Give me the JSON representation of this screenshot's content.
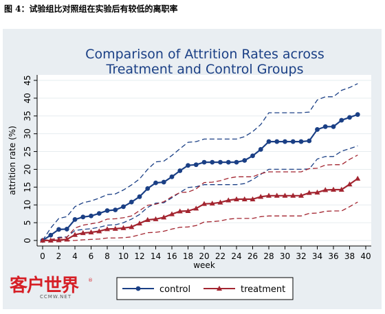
{
  "caption": "图 4：试验组比对照组在实验后有较低的离职率",
  "logo": {
    "main": "客户世界",
    "sub": "CCMW.NET",
    "reg": "®"
  },
  "colors": {
    "frame": "#e9eef2",
    "plot_bg": "#ffffff",
    "control": "#1a3f85",
    "treatment": "#a32530"
  },
  "chart_data": {
    "type": "line",
    "title": "Comparison of Attrition Rates across\nTreatment and Control Groups",
    "xlabel": "week",
    "ylabel": "attrition rate (%)",
    "xlim": [
      0,
      40
    ],
    "ylim": [
      0,
      45
    ],
    "xticks": [
      0,
      2,
      4,
      6,
      8,
      10,
      12,
      14,
      16,
      18,
      20,
      22,
      24,
      26,
      28,
      30,
      32,
      34,
      36,
      38,
      40
    ],
    "yticks": [
      0,
      5,
      10,
      15,
      20,
      25,
      30,
      35,
      40,
      45
    ],
    "grid": true,
    "legend": "bottom",
    "x": [
      0,
      1,
      2,
      3,
      4,
      5,
      6,
      7,
      8,
      9,
      10,
      11,
      12,
      13,
      14,
      15,
      16,
      17,
      18,
      19,
      20,
      21,
      22,
      23,
      24,
      25,
      26,
      27,
      28,
      29,
      30,
      31,
      32,
      33,
      34,
      35,
      36,
      37,
      38,
      39
    ],
    "series": [
      {
        "name": "control",
        "marker": "circle",
        "values": [
          0,
          1.5,
          3.1,
          3.2,
          5.9,
          6.6,
          6.9,
          7.6,
          8.4,
          8.6,
          9.5,
          10.8,
          12.3,
          14.6,
          16.2,
          16.4,
          17.9,
          19.6,
          21.1,
          21.3,
          22,
          22,
          22,
          22,
          22,
          22.5,
          23.8,
          25.6,
          27.8,
          27.8,
          27.8,
          27.8,
          27.8,
          28,
          31.2,
          32,
          32,
          33.8,
          34.6,
          35.4
        ],
        "ci_upper": [
          0,
          3.5,
          6.2,
          6.7,
          9.5,
          10.6,
          11.1,
          11.9,
          12.9,
          13.1,
          14.2,
          15.6,
          17.3,
          20,
          22.1,
          22.3,
          23.9,
          25.8,
          27.6,
          27.8,
          28.5,
          28.5,
          28.5,
          28.5,
          28.5,
          29.2,
          30.6,
          32.6,
          35.9,
          35.9,
          35.9,
          35.9,
          35.9,
          36.1,
          39.5,
          40.4,
          40.4,
          42.2,
          43,
          44.1
        ],
        "ci_lower": [
          0,
          0,
          0.9,
          1,
          2.8,
          3.1,
          3.3,
          3.7,
          4.3,
          4.4,
          5,
          6,
          7.3,
          9.3,
          10.5,
          10.6,
          12,
          13.5,
          14.9,
          15.1,
          15.7,
          15.7,
          15.7,
          15.7,
          15.7,
          16,
          17.1,
          18.6,
          20,
          20,
          20,
          20,
          20,
          20.1,
          22.9,
          23.6,
          23.6,
          25.1,
          25.8,
          26.6
        ]
      },
      {
        "name": "treatment",
        "marker": "triangle",
        "values": [
          0,
          0,
          0.1,
          0.3,
          1.6,
          2.1,
          2.3,
          2.6,
          3.2,
          3.3,
          3.5,
          3.8,
          4.8,
          5.8,
          6,
          6.5,
          7.4,
          8.2,
          8.3,
          9,
          10.3,
          10.4,
          10.7,
          11.3,
          11.6,
          11.6,
          11.6,
          12.3,
          12.6,
          12.6,
          12.6,
          12.6,
          12.6,
          13.4,
          13.5,
          14.2,
          14.3,
          14.3,
          15.8,
          17.4
        ],
        "ci_upper": [
          0,
          0.3,
          0.6,
          0.9,
          3.5,
          4.3,
          4.7,
          5.1,
          6,
          6.1,
          6.4,
          6.9,
          8.4,
          9.9,
          10.2,
          10.9,
          12.3,
          13.5,
          13.6,
          14.5,
          16.3,
          16.4,
          16.8,
          17.5,
          17.9,
          17.9,
          17.9,
          18.8,
          19.3,
          19.3,
          19.3,
          19.3,
          19.3,
          20.2,
          20.3,
          21.2,
          21.3,
          21.3,
          22.8,
          24
        ],
        "ci_lower": [
          0,
          0,
          0,
          0,
          0,
          0.2,
          0.3,
          0.4,
          0.7,
          0.7,
          0.8,
          1,
          1.6,
          2.2,
          2.3,
          2.6,
          3.2,
          3.7,
          3.8,
          4.2,
          5.2,
          5.3,
          5.5,
          6,
          6.2,
          6.2,
          6.2,
          6.7,
          6.9,
          6.9,
          6.9,
          6.9,
          6.9,
          7.6,
          7.7,
          8.2,
          8.3,
          8.3,
          9.5,
          10.8
        ]
      }
    ]
  }
}
